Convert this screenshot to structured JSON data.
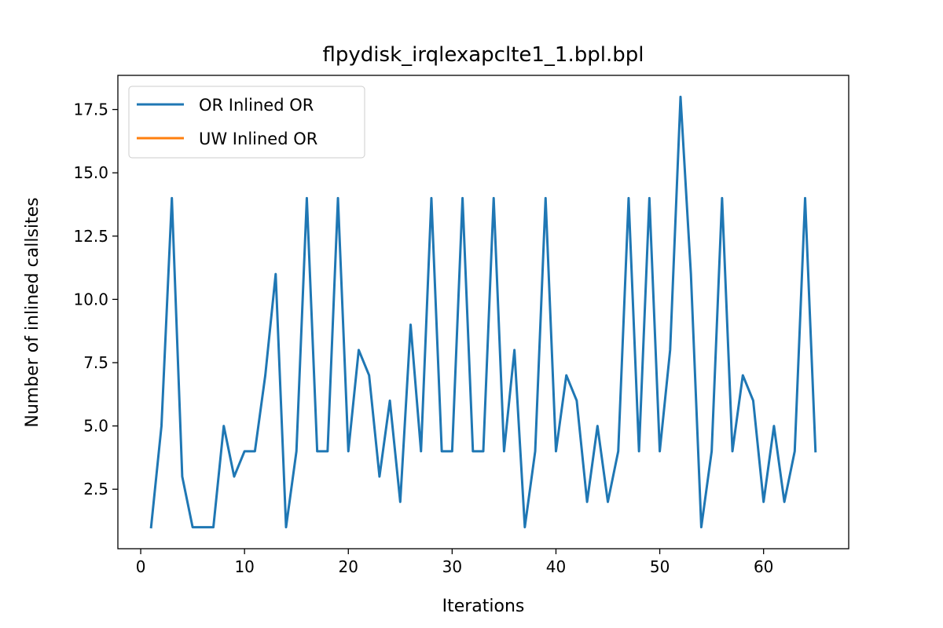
{
  "chart_data": {
    "type": "line",
    "title": "flpydisk_irqlexapclte1_1.bpl.bpl",
    "xlabel": "Iterations",
    "ylabel": "Number of inlined callsites",
    "xlim": [
      -2.2,
      68.2
    ],
    "ylim": [
      0.15,
      18.85
    ],
    "xticks": [
      0,
      10,
      20,
      30,
      40,
      50,
      60
    ],
    "yticks": [
      2.5,
      5.0,
      7.5,
      10.0,
      12.5,
      15.0,
      17.5
    ],
    "ytick_labels": [
      "2.5",
      "5.0",
      "7.5",
      "10.0",
      "12.5",
      "15.0",
      "17.5"
    ],
    "grid": false,
    "legend_position": "top-left",
    "series": [
      {
        "name": "OR Inlined OR",
        "color": "#1f77b4",
        "x": [
          1,
          2,
          3,
          4,
          5,
          6,
          7,
          8,
          9,
          10,
          11,
          12,
          13,
          14,
          15,
          16,
          17,
          18,
          19,
          20,
          21,
          22,
          23,
          24,
          25,
          26,
          27,
          28,
          29,
          30,
          31,
          32,
          33,
          34,
          35,
          36,
          37,
          38,
          39,
          40,
          41,
          42,
          43,
          44,
          45,
          46,
          47,
          48,
          49,
          50,
          51,
          52,
          53,
          54,
          55,
          56,
          57,
          58,
          59,
          60,
          61,
          62,
          63,
          64,
          65
        ],
        "values": [
          1,
          5,
          14,
          3,
          1,
          1,
          1,
          5,
          3,
          4,
          4,
          7,
          11,
          1,
          4,
          14,
          4,
          4,
          14,
          4,
          8,
          7,
          3,
          6,
          2,
          9,
          4,
          14,
          4,
          4,
          14,
          4,
          4,
          14,
          4,
          8,
          1,
          4,
          14,
          4,
          7,
          6,
          2,
          5,
          2,
          4,
          14,
          4,
          14,
          4,
          8,
          18,
          11,
          1,
          4,
          14,
          4,
          7,
          6,
          2,
          5,
          2,
          4,
          14,
          4
        ]
      },
      {
        "name": "UW Inlined OR",
        "color": "#ff7f0e",
        "x": [],
        "values": []
      }
    ]
  }
}
